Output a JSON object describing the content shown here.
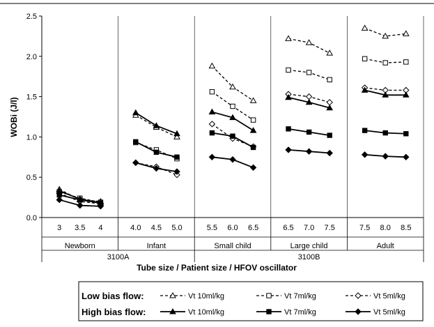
{
  "chart_data": {
    "type": "line",
    "xlabel": "Tube size / Patient size / HFOV oscillator",
    "ylabel": "WOBi (J/l)",
    "ylim": [
      0,
      2.5
    ],
    "y_ticks": [
      "0.0",
      "0.5",
      "1.0",
      "1.5",
      "2.0",
      "2.5"
    ],
    "groups": [
      {
        "patient": "Newborn",
        "tube_sizes": [
          "3",
          "3.5",
          "4"
        ],
        "series": {
          "low_vt10": [
            0.35,
            0.22,
            0.2
          ],
          "low_vt7": [
            0.32,
            0.24,
            0.19
          ],
          "low_vt5": [
            0.3,
            0.2,
            0.17
          ],
          "high_vt10": [
            0.33,
            0.23,
            0.18
          ],
          "high_vt7": [
            0.28,
            0.22,
            0.18
          ],
          "high_vt5": [
            0.22,
            0.15,
            0.14
          ]
        }
      },
      {
        "patient": "Infant",
        "tube_sizes": [
          "4.0",
          "4.5",
          "5.0"
        ],
        "series": {
          "low_vt10": [
            1.27,
            1.12,
            1.0
          ],
          "low_vt7": [
            0.93,
            0.84,
            0.73
          ],
          "low_vt5": [
            0.68,
            0.63,
            0.53
          ],
          "high_vt10": [
            1.3,
            1.14,
            1.04
          ],
          "high_vt7": [
            0.94,
            0.81,
            0.75
          ],
          "high_vt5": [
            0.68,
            0.61,
            0.57
          ]
        }
      },
      {
        "patient": "Small child",
        "tube_sizes": [
          "5.5",
          "6.0",
          "6.5"
        ],
        "series": {
          "low_vt10": [
            1.88,
            1.62,
            1.45
          ],
          "low_vt7": [
            1.56,
            1.38,
            1.21
          ],
          "low_vt5": [
            1.16,
            0.98,
            0.88
          ],
          "high_vt10": [
            1.31,
            1.24,
            1.08
          ],
          "high_vt7": [
            1.05,
            1.01,
            0.87
          ],
          "high_vt5": [
            0.75,
            0.72,
            0.62
          ]
        }
      },
      {
        "patient": "Large child",
        "tube_sizes": [
          "6.5",
          "7.0",
          "7.5"
        ],
        "series": {
          "low_vt10": [
            2.22,
            2.17,
            2.04
          ],
          "low_vt7": [
            1.83,
            1.8,
            1.71
          ],
          "low_vt5": [
            1.53,
            1.5,
            1.43
          ],
          "high_vt10": [
            1.49,
            1.43,
            1.36
          ],
          "high_vt7": [
            1.1,
            1.06,
            1.02
          ],
          "high_vt5": [
            0.84,
            0.82,
            0.8
          ]
        }
      },
      {
        "patient": "Adult",
        "tube_sizes": [
          "7.5",
          "8.0",
          "8.5"
        ],
        "series": {
          "low_vt10": [
            2.35,
            2.25,
            2.28
          ],
          "low_vt7": [
            1.97,
            1.92,
            1.93
          ],
          "low_vt5": [
            1.61,
            1.58,
            1.58
          ],
          "high_vt10": [
            1.58,
            1.52,
            1.52
          ],
          "high_vt7": [
            1.08,
            1.05,
            1.04
          ],
          "high_vt5": [
            0.78,
            0.76,
            0.75
          ]
        }
      }
    ],
    "oscillators": [
      {
        "label": "3100A",
        "groups": [
          0,
          1
        ]
      },
      {
        "label": "3100B",
        "groups": [
          2,
          3,
          4
        ]
      }
    ],
    "series_styles": [
      {
        "key": "low_vt10",
        "dashed": true,
        "marker": "triangle",
        "filled": false
      },
      {
        "key": "low_vt7",
        "dashed": true,
        "marker": "square",
        "filled": false
      },
      {
        "key": "low_vt5",
        "dashed": true,
        "marker": "diamond",
        "filled": false
      },
      {
        "key": "high_vt10",
        "dashed": false,
        "marker": "triangle",
        "filled": true
      },
      {
        "key": "high_vt7",
        "dashed": false,
        "marker": "square",
        "filled": true
      },
      {
        "key": "high_vt5",
        "dashed": false,
        "marker": "diamond",
        "filled": true
      }
    ],
    "legend": {
      "rows": [
        {
          "label": "Low bias flow:",
          "items": [
            {
              "series": "low_vt10",
              "label": "Vt 10ml/kg"
            },
            {
              "series": "low_vt7",
              "label": "Vt 7ml/kg"
            },
            {
              "series": "low_vt5",
              "label": "Vt 5ml/kg"
            }
          ]
        },
        {
          "label": "High bias flow:",
          "items": [
            {
              "series": "high_vt10",
              "label": "Vt 10ml/kg"
            },
            {
              "series": "high_vt7",
              "label": "Vt 7ml/kg"
            },
            {
              "series": "high_vt5",
              "label": "Vt 5ml/kg"
            }
          ]
        }
      ]
    }
  }
}
